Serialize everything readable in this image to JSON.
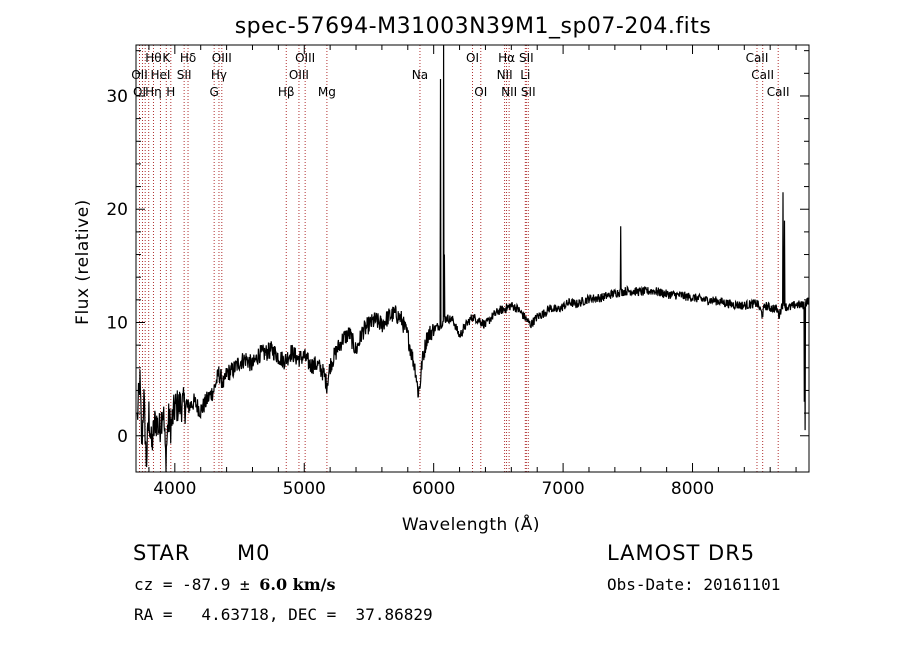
{
  "chart_data": {
    "type": "line",
    "title": "spec-57694-M31003N39M1_sp07-204.fits",
    "xlabel": "Wavelength (Å)",
    "ylabel": "Flux (relative)",
    "xlim": [
      3700,
      8900
    ],
    "ylim": [
      -3.2,
      34.5
    ],
    "xticks": [
      4000,
      5000,
      6000,
      7000,
      8000
    ],
    "yticks": [
      0,
      10,
      20,
      30
    ],
    "grid": false,
    "line_color": "#000000",
    "marker_color": "#b03030",
    "spectrum_anchors": [
      [
        3710,
        1.5
      ],
      [
        3730,
        5
      ],
      [
        3745,
        -1
      ],
      [
        3760,
        3.5
      ],
      [
        3780,
        -2.5
      ],
      [
        3800,
        2
      ],
      [
        3820,
        -1
      ],
      [
        3850,
        1.5
      ],
      [
        3880,
        0.5
      ],
      [
        3910,
        2.5
      ],
      [
        3930,
        -2
      ],
      [
        3950,
        1.5
      ],
      [
        3970,
        0.8
      ],
      [
        4000,
        2.5
      ],
      [
        4050,
        2.8
      ],
      [
        4100,
        2.5
      ],
      [
        4150,
        3
      ],
      [
        4200,
        2.2
      ],
      [
        4250,
        3.2
      ],
      [
        4300,
        4
      ],
      [
        4340,
        5.5
      ],
      [
        4380,
        4.5
      ],
      [
        4400,
        5.5
      ],
      [
        4450,
        5.8
      ],
      [
        4500,
        6.5
      ],
      [
        4550,
        6.8
      ],
      [
        4600,
        6.2
      ],
      [
        4650,
        7.2
      ],
      [
        4700,
        7.3
      ],
      [
        4750,
        7.6
      ],
      [
        4800,
        7
      ],
      [
        4850,
        6.6
      ],
      [
        4900,
        7.4
      ],
      [
        4950,
        6.8
      ],
      [
        5000,
        7
      ],
      [
        5050,
        6.2
      ],
      [
        5100,
        6.3
      ],
      [
        5150,
        5.5
      ],
      [
        5175,
        4.5
      ],
      [
        5200,
        6.2
      ],
      [
        5250,
        7.5
      ],
      [
        5300,
        8.6
      ],
      [
        5350,
        9
      ],
      [
        5400,
        7.5
      ],
      [
        5450,
        9.2
      ],
      [
        5500,
        9.8
      ],
      [
        5550,
        10.2
      ],
      [
        5600,
        9.8
      ],
      [
        5650,
        10.5
      ],
      [
        5700,
        10.8
      ],
      [
        5750,
        10.3
      ],
      [
        5800,
        8.8
      ],
      [
        5830,
        7.2
      ],
      [
        5860,
        5.8
      ],
      [
        5880,
        3.8
      ],
      [
        5895,
        4.5
      ],
      [
        5910,
        6.5
      ],
      [
        5950,
        8.8
      ],
      [
        6000,
        9.4
      ],
      [
        6050,
        9.8
      ],
      [
        6080,
        10.2
      ],
      [
        6100,
        10.4
      ],
      [
        6150,
        10.2
      ],
      [
        6200,
        8.8
      ],
      [
        6250,
        9.8
      ],
      [
        6300,
        10.5
      ],
      [
        6350,
        10.2
      ],
      [
        6400,
        9.8
      ],
      [
        6450,
        10.5
      ],
      [
        6500,
        11
      ],
      [
        6550,
        11.2
      ],
      [
        6600,
        11.5
      ],
      [
        6650,
        11.2
      ],
      [
        6700,
        10.5
      ],
      [
        6750,
        9.8
      ],
      [
        6800,
        10.5
      ],
      [
        6850,
        10.8
      ],
      [
        6900,
        11.3
      ],
      [
        6950,
        11.1
      ],
      [
        7000,
        11.4
      ],
      [
        7050,
        11.8
      ],
      [
        7100,
        11.6
      ],
      [
        7200,
        12.1
      ],
      [
        7300,
        12.2
      ],
      [
        7400,
        12.6
      ],
      [
        7500,
        12.8
      ],
      [
        7600,
        12.7
      ],
      [
        7700,
        12.8
      ],
      [
        7800,
        12.5
      ],
      [
        7900,
        12.4
      ],
      [
        8000,
        12.2
      ],
      [
        8100,
        12.0
      ],
      [
        8200,
        11.9
      ],
      [
        8300,
        11.6
      ],
      [
        8400,
        11.5
      ],
      [
        8500,
        11.7
      ],
      [
        8540,
        10.7
      ],
      [
        8560,
        11.5
      ],
      [
        8600,
        11.3
      ],
      [
        8650,
        11.2
      ],
      [
        8670,
        10.6
      ],
      [
        8690,
        11.5
      ],
      [
        8750,
        11.3
      ],
      [
        8800,
        11.6
      ],
      [
        8850,
        11.5
      ],
      [
        8900,
        12
      ]
    ],
    "spectrum_spikes": [
      [
        6054,
        31.5
      ],
      [
        6078,
        34.5
      ],
      [
        6082,
        16
      ],
      [
        7445,
        18.5
      ],
      [
        8700,
        21.5
      ],
      [
        8712,
        19
      ],
      [
        8864,
        3
      ],
      [
        8870,
        0.5
      ]
    ],
    "line_markers": [
      {
        "wavelength": 3727,
        "labels": [
          {
            "text": "OII",
            "row": 2
          },
          {
            "text": "OI",
            "row": 3
          }
        ]
      },
      {
        "wavelength": 3750,
        "labels": []
      },
      {
        "wavelength": 3771,
        "labels": []
      },
      {
        "wavelength": 3798,
        "labels": []
      },
      {
        "wavelength": 3835,
        "labels": [
          {
            "text": "Hθ",
            "row": 1
          },
          {
            "text": "Hη",
            "row": 3
          }
        ]
      },
      {
        "wavelength": 3889,
        "labels": [
          {
            "text": "HeI",
            "row": 2
          }
        ]
      },
      {
        "wavelength": 3934,
        "labels": [
          {
            "text": "K",
            "row": 1
          }
        ]
      },
      {
        "wavelength": 3969,
        "labels": [
          {
            "text": "H",
            "row": 3
          }
        ]
      },
      {
        "wavelength": 4072,
        "labels": [
          {
            "text": "SII",
            "row": 2
          }
        ]
      },
      {
        "wavelength": 4102,
        "labels": [
          {
            "text": "Hδ",
            "row": 1
          }
        ]
      },
      {
        "wavelength": 4304,
        "labels": [
          {
            "text": "G",
            "row": 3
          }
        ]
      },
      {
        "wavelength": 4341,
        "labels": [
          {
            "text": "Hγ",
            "row": 2
          }
        ]
      },
      {
        "wavelength": 4363,
        "labels": [
          {
            "text": "OIII",
            "row": 1
          }
        ]
      },
      {
        "wavelength": 4861,
        "labels": [
          {
            "text": "Hβ",
            "row": 3
          }
        ]
      },
      {
        "wavelength": 4959,
        "labels": [
          {
            "text": "OIII",
            "row": 2
          }
        ]
      },
      {
        "wavelength": 5007,
        "labels": [
          {
            "text": "OIII",
            "row": 1
          }
        ]
      },
      {
        "wavelength": 5175,
        "labels": [
          {
            "text": "Mg",
            "row": 3
          }
        ]
      },
      {
        "wavelength": 5894,
        "labels": [
          {
            "text": "Na",
            "row": 2
          }
        ]
      },
      {
        "wavelength": 6300,
        "labels": [
          {
            "text": "OI",
            "row": 1
          }
        ]
      },
      {
        "wavelength": 6364,
        "labels": [
          {
            "text": "OI",
            "row": 3
          }
        ]
      },
      {
        "wavelength": 6548,
        "labels": [
          {
            "text": "NII",
            "row": 2
          }
        ]
      },
      {
        "wavelength": 6563,
        "labels": [
          {
            "text": "Hα",
            "row": 1
          }
        ]
      },
      {
        "wavelength": 6583,
        "labels": [
          {
            "text": "NII",
            "row": 3
          }
        ]
      },
      {
        "wavelength": 6708,
        "labels": [
          {
            "text": "Li",
            "row": 2
          }
        ]
      },
      {
        "wavelength": 6716,
        "labels": [
          {
            "text": "SII",
            "row": 1
          }
        ]
      },
      {
        "wavelength": 6731,
        "labels": [
          {
            "text": "SII",
            "row": 3
          }
        ]
      },
      {
        "wavelength": 8498,
        "labels": [
          {
            "text": "CaII",
            "row": 1
          }
        ]
      },
      {
        "wavelength": 8542,
        "labels": [
          {
            "text": "CaII",
            "row": 2
          }
        ]
      },
      {
        "wavelength": 8662,
        "labels": [
          {
            "text": "CaII",
            "row": 3
          }
        ]
      }
    ]
  },
  "info": {
    "object_class": "STAR",
    "subclass": "M0",
    "survey": "LAMOST DR5",
    "redshift_prefix": "cz = ",
    "redshift_value": "-87.9",
    "redshift_pm": " ± ",
    "redshift_err": "6.0 km/s",
    "obs_date": "Obs-Date: 20161101",
    "coordinates": "RA =   4.63718, DEC =  37.86829"
  }
}
